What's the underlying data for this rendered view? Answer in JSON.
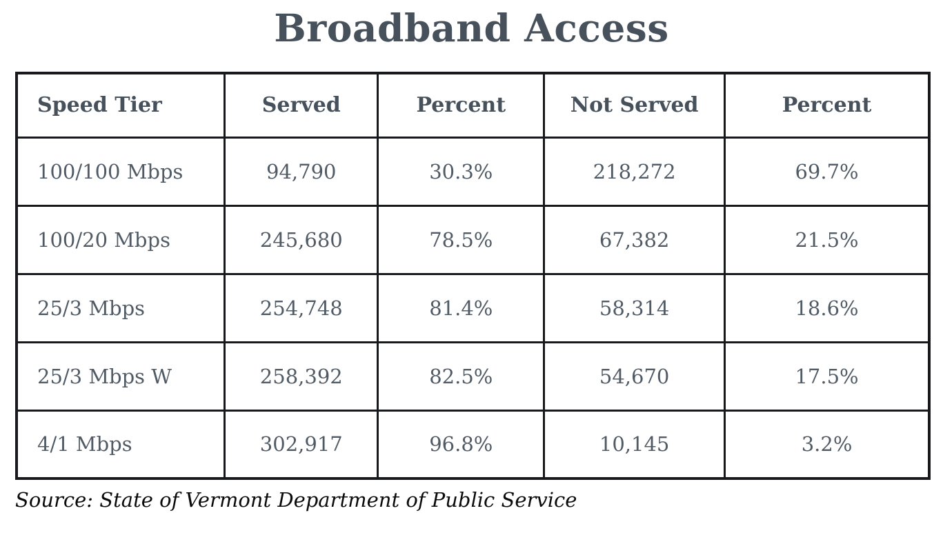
{
  "title": "Broadband Access",
  "source": "Source: State of Vermont Department of Public Service",
  "colors": {
    "heading_text": "#47515b",
    "cell_text": "#515b66",
    "border": "#17191d",
    "source_text": "#0b0b0b",
    "background": "#ffffff"
  },
  "chart_data": {
    "type": "table",
    "title": "Broadband Access",
    "columns": [
      "Speed Tier",
      "Served",
      "Percent",
      "Not Served",
      "Percent"
    ],
    "rows": [
      [
        "100/100 Mbps",
        "94,790",
        "30.3%",
        "218,272",
        "69.7%"
      ],
      [
        "100/20 Mbps",
        "245,680",
        "78.5%",
        "67,382",
        "21.5%"
      ],
      [
        "25/3 Mbps",
        "254,748",
        "81.4%",
        "58,314",
        "18.6%"
      ],
      [
        "25/3 Mbps W",
        "258,392",
        "82.5%",
        "54,670",
        "17.5%"
      ],
      [
        "4/1 Mbps",
        "302,917",
        "96.8%",
        "10,145",
        "3.2%"
      ]
    ],
    "source": "Source: State of Vermont Department of Public Service",
    "layout_hints": {
      "first_column_align": "left",
      "other_columns_align": "center",
      "grid": "all-borders"
    }
  }
}
